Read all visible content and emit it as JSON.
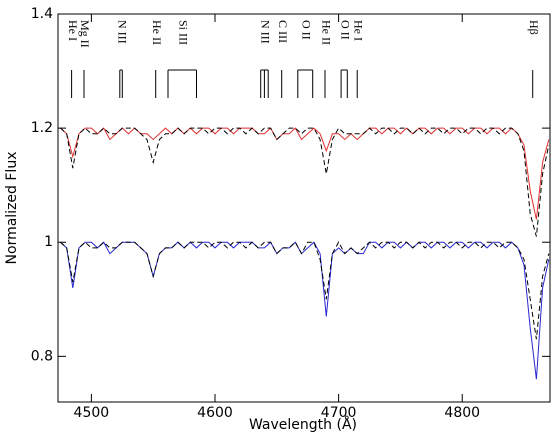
{
  "chart_data": {
    "type": "line",
    "xlabel": "Wavelength (Å)",
    "ylabel": "Normalized Flux",
    "xlim": [
      4473,
      4871
    ],
    "ylim": [
      0.72,
      1.4
    ],
    "xticks": [
      4500,
      4600,
      4700,
      4800
    ],
    "yticks": [
      0.8,
      1,
      1.2,
      1.4
    ],
    "x": [
      4475,
      4480,
      4485,
      4490,
      4495,
      4500,
      4505,
      4510,
      4515,
      4520,
      4525,
      4530,
      4535,
      4540,
      4545,
      4550,
      4555,
      4560,
      4565,
      4570,
      4575,
      4580,
      4585,
      4590,
      4595,
      4600,
      4605,
      4610,
      4615,
      4620,
      4625,
      4630,
      4635,
      4640,
      4645,
      4650,
      4655,
      4660,
      4665,
      4670,
      4675,
      4680,
      4685,
      4690,
      4695,
      4700,
      4705,
      4710,
      4715,
      4720,
      4725,
      4730,
      4735,
      4740,
      4745,
      4750,
      4755,
      4760,
      4765,
      4770,
      4775,
      4780,
      4785,
      4790,
      4795,
      4800,
      4805,
      4810,
      4815,
      4820,
      4825,
      4830,
      4835,
      4840,
      4845,
      4850,
      4855,
      4860,
      4865,
      4870
    ],
    "series": [
      {
        "color": "#e03030",
        "dashed": false,
        "values": [
          1.2,
          1.19,
          1.15,
          1.19,
          1.2,
          1.2,
          1.19,
          1.2,
          1.18,
          1.19,
          1.2,
          1.19,
          1.2,
          1.19,
          1.19,
          1.18,
          1.19,
          1.2,
          1.19,
          1.2,
          1.19,
          1.2,
          1.19,
          1.2,
          1.2,
          1.19,
          1.2,
          1.2,
          1.19,
          1.2,
          1.2,
          1.2,
          1.19,
          1.19,
          1.2,
          1.18,
          1.19,
          1.19,
          1.2,
          1.18,
          1.19,
          1.2,
          1.19,
          1.16,
          1.19,
          1.19,
          1.18,
          1.19,
          1.18,
          1.19,
          1.2,
          1.2,
          1.19,
          1.2,
          1.2,
          1.19,
          1.2,
          1.19,
          1.2,
          1.2,
          1.19,
          1.2,
          1.2,
          1.19,
          1.2,
          1.2,
          1.19,
          1.2,
          1.2,
          1.19,
          1.2,
          1.2,
          1.19,
          1.2,
          1.19,
          1.17,
          1.09,
          1.04,
          1.14,
          1.18
        ]
      },
      {
        "color": "#000000",
        "dashed": true,
        "values": [
          1.2,
          1.19,
          1.13,
          1.19,
          1.2,
          1.19,
          1.19,
          1.2,
          1.19,
          1.19,
          1.2,
          1.2,
          1.2,
          1.19,
          1.18,
          1.14,
          1.18,
          1.19,
          1.19,
          1.2,
          1.19,
          1.2,
          1.2,
          1.2,
          1.19,
          1.2,
          1.2,
          1.19,
          1.2,
          1.2,
          1.19,
          1.2,
          1.19,
          1.2,
          1.2,
          1.18,
          1.19,
          1.2,
          1.2,
          1.19,
          1.2,
          1.2,
          1.18,
          1.12,
          1.18,
          1.2,
          1.19,
          1.19,
          1.19,
          1.19,
          1.2,
          1.19,
          1.2,
          1.2,
          1.19,
          1.2,
          1.2,
          1.19,
          1.2,
          1.19,
          1.2,
          1.2,
          1.19,
          1.2,
          1.2,
          1.19,
          1.2,
          1.2,
          1.19,
          1.2,
          1.2,
          1.19,
          1.2,
          1.2,
          1.19,
          1.16,
          1.05,
          1.01,
          1.12,
          1.17
        ]
      },
      {
        "color": "#2828d0",
        "dashed": false,
        "values": [
          1.0,
          0.99,
          0.92,
          0.99,
          1.0,
          1.0,
          0.99,
          1.0,
          0.98,
          0.99,
          1.0,
          1.0,
          1.0,
          0.99,
          0.98,
          0.94,
          0.98,
          0.99,
          0.99,
          1.0,
          0.99,
          1.0,
          0.99,
          1.0,
          1.0,
          0.99,
          1.0,
          1.0,
          0.99,
          1.0,
          1.0,
          1.0,
          0.99,
          0.99,
          1.0,
          0.98,
          0.99,
          0.99,
          1.0,
          0.98,
          0.99,
          1.0,
          0.98,
          0.87,
          0.98,
          0.99,
          0.98,
          0.99,
          0.98,
          0.98,
          1.0,
          1.0,
          0.99,
          1.0,
          1.0,
          0.99,
          1.0,
          0.99,
          1.0,
          1.0,
          0.99,
          1.0,
          1.0,
          0.99,
          1.0,
          1.0,
          0.99,
          1.0,
          1.0,
          0.99,
          1.0,
          1.0,
          0.99,
          1.0,
          0.99,
          0.96,
          0.85,
          0.76,
          0.92,
          0.97
        ]
      },
      {
        "color": "#000000",
        "dashed": true,
        "values": [
          1.0,
          0.99,
          0.93,
          0.99,
          1.0,
          0.99,
          0.99,
          1.0,
          0.99,
          0.99,
          1.0,
          1.0,
          1.0,
          0.99,
          0.98,
          0.94,
          0.98,
          0.99,
          0.99,
          1.0,
          0.99,
          1.0,
          1.0,
          1.0,
          0.99,
          1.0,
          1.0,
          0.99,
          1.0,
          1.0,
          0.99,
          1.0,
          0.99,
          1.0,
          1.0,
          0.98,
          0.99,
          0.99,
          1.0,
          0.98,
          1.0,
          1.0,
          0.97,
          0.9,
          0.98,
          1.0,
          0.98,
          0.99,
          0.98,
          0.99,
          1.0,
          0.99,
          1.0,
          1.0,
          0.99,
          1.0,
          1.0,
          0.99,
          1.0,
          0.99,
          1.0,
          1.0,
          0.99,
          1.0,
          1.0,
          0.99,
          1.0,
          1.0,
          0.99,
          1.0,
          1.0,
          0.99,
          1.0,
          1.0,
          0.99,
          0.97,
          0.9,
          0.83,
          0.94,
          0.98
        ]
      }
    ],
    "line_ids": [
      {
        "label": "He I",
        "x": [
          4484
        ]
      },
      {
        "label": "Mg II",
        "x": [
          4494
        ]
      },
      {
        "label": "N III",
        "x": [
          4523,
          4525
        ]
      },
      {
        "label": "He II",
        "x": [
          4552
        ]
      },
      {
        "label": "Si III",
        "x": [
          4562,
          4585
        ]
      },
      {
        "label": "N III",
        "x": [
          4637,
          4640,
          4643
        ]
      },
      {
        "label": "C III",
        "x": [
          4654
        ]
      },
      {
        "label": "O II",
        "x": [
          4667,
          4679
        ]
      },
      {
        "label": "He II",
        "x": [
          4689
        ]
      },
      {
        "label": "O II",
        "x": [
          4702,
          4707
        ]
      },
      {
        "label": "He I",
        "x": [
          4715
        ]
      },
      {
        "label": "Hβ",
        "x": [
          4857
        ]
      }
    ]
  }
}
